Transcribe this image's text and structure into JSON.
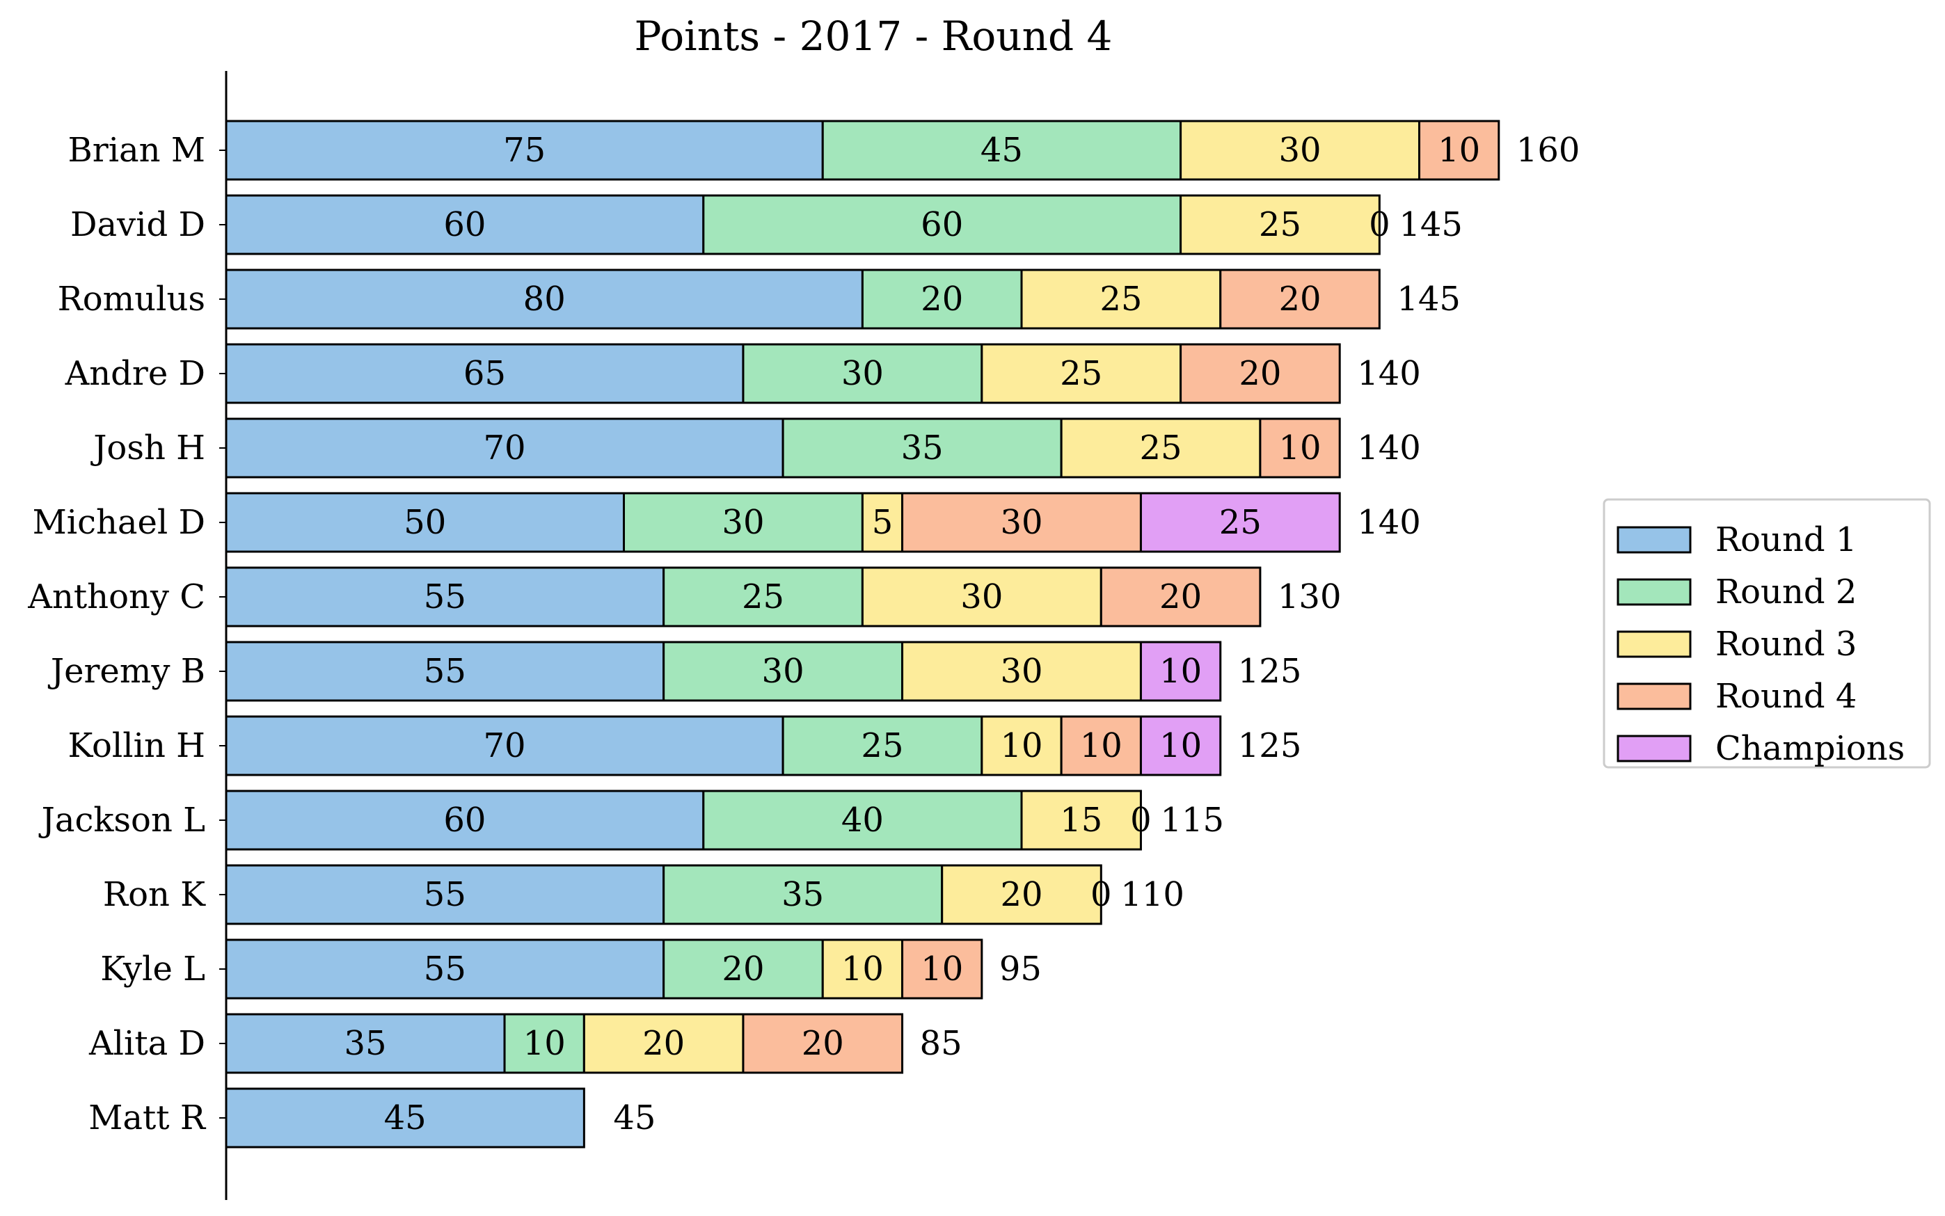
{
  "chart_data": {
    "type": "bar",
    "orientation": "horizontal",
    "stacked": true,
    "title": "Points - 2017 - Round 4",
    "xlabel": "",
    "ylabel": "",
    "xlim": [
      0,
      200
    ],
    "grid": false,
    "legend_position": "right",
    "categories": [
      "Brian M",
      "David D",
      "Romulus",
      "Andre D",
      "Josh H",
      "Michael D",
      "Anthony C",
      "Jeremy B",
      "Kollin H",
      "Jackson L",
      "Ron K",
      "Kyle L",
      "Alita D",
      "Matt R"
    ],
    "series": [
      {
        "name": "Round 1",
        "color": "#96c3e8",
        "values": [
          75,
          60,
          80,
          65,
          70,
          50,
          55,
          55,
          70,
          60,
          55,
          55,
          35,
          45
        ]
      },
      {
        "name": "Round 2",
        "color": "#a3e6bb",
        "values": [
          45,
          60,
          20,
          30,
          35,
          30,
          25,
          30,
          25,
          40,
          35,
          20,
          10,
          0
        ]
      },
      {
        "name": "Round 3",
        "color": "#fdec9b",
        "values": [
          30,
          25,
          25,
          25,
          25,
          5,
          30,
          30,
          10,
          15,
          20,
          10,
          20,
          0
        ]
      },
      {
        "name": "Round 4",
        "color": "#fbbd9c",
        "values": [
          10,
          0,
          20,
          20,
          10,
          30,
          20,
          0,
          10,
          0,
          0,
          10,
          20,
          0
        ]
      },
      {
        "name": "Champions",
        "color": "#e19ff5",
        "values": [
          0,
          0,
          0,
          0,
          0,
          25,
          0,
          10,
          10,
          0,
          0,
          0,
          0,
          0
        ]
      }
    ],
    "totals": [
      160,
      145,
      145,
      140,
      140,
      140,
      130,
      125,
      125,
      115,
      110,
      95,
      85,
      45
    ]
  }
}
